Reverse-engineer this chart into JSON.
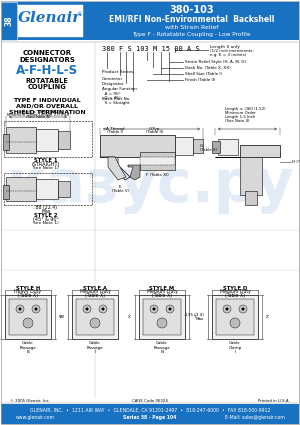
{
  "title_part": "380-103",
  "title_main": "EMI/RFI Non-Environmental  Backshell",
  "title_sub1": "with Strain Relief",
  "title_sub2": "Type F - Rotatable Coupling - Low Profile",
  "header_bg": "#1971C2",
  "logo_text": "Glenair",
  "logo_bg": "#FFFFFF",
  "tab_text": "38",
  "part_number_example": "380 F S 103 M 15 00 A S",
  "connector_designators": "A-F-H-L-S",
  "designators_color": "#1971C2",
  "footer_line1": "GLENAIR, INC.  •  1211 AIR WAY  •  GLENDALE, CA 91201-2497  •  818-247-6000  •  FAX 818-500-9912",
  "footer_line2": "www.glenair.com",
  "footer_line3": "Series 38 - Page 104",
  "footer_line4": "E-Mail: sales@glenair.com",
  "footer_mid": "CAGE Code 06324",
  "footer_copy": "© 2005 Glenair, Inc.",
  "footer_print": "Printed in U.S.A.",
  "bg_color": "#FFFFFF",
  "gray1": "#CCCCCC",
  "gray2": "#AAAAAA",
  "gray3": "#888888",
  "gray_dark": "#555555",
  "gray_light": "#EEEEEE",
  "gray_fill": "#D8D8D8",
  "line_color": "#333333",
  "watermark_color": "#C8D8EE"
}
